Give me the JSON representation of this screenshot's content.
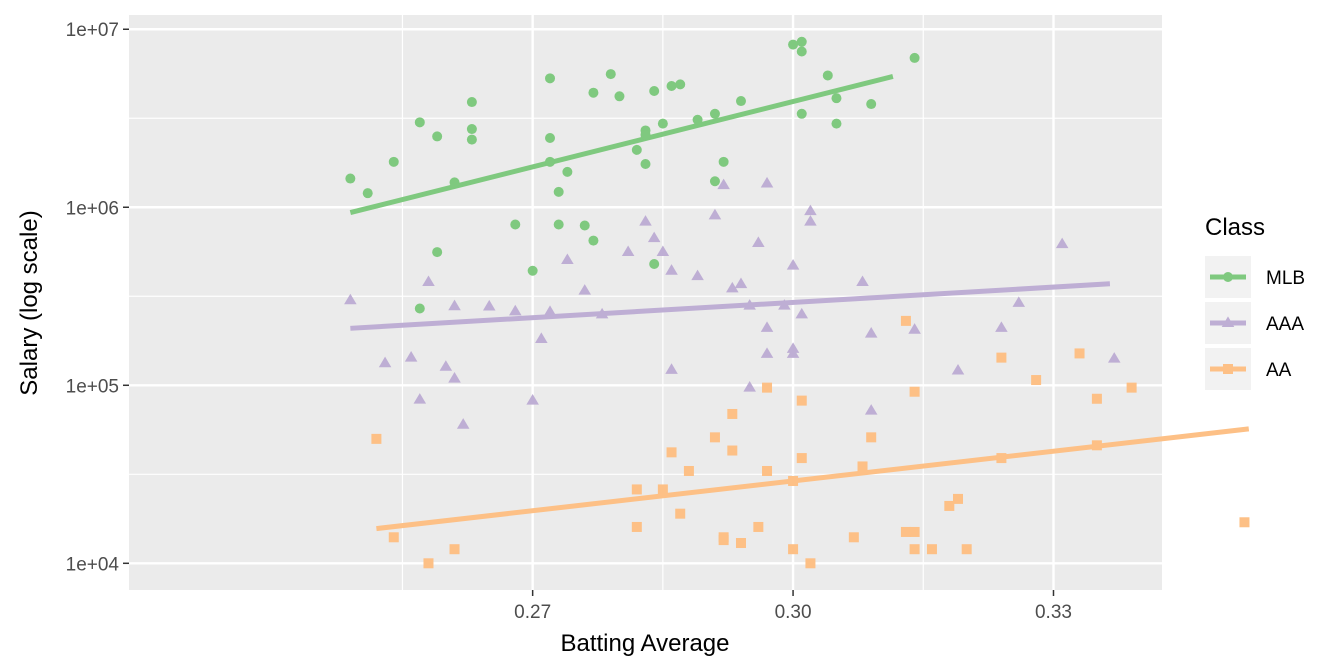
{
  "chart_data": {
    "type": "scatter",
    "title": "",
    "xlabel": "Batting Average",
    "ylabel": "Salary (log scale)",
    "xlim": [
      0.2235,
      0.3425
    ],
    "ylim_log10": [
      3.85,
      7.08
    ],
    "y_scale": "log10",
    "x_ticks": [
      0.27,
      0.3,
      0.33
    ],
    "x_tick_labels": [
      "0.27",
      "0.30",
      "0.33"
    ],
    "x_minor": [
      0.255,
      0.285,
      0.315,
      0.345
    ],
    "y_ticks_log10": [
      4,
      5,
      6,
      7
    ],
    "y_tick_labels": [
      "1e+04",
      "1e+05",
      "1e+06",
      "1e+07"
    ],
    "grid": true,
    "legend_title": "Class",
    "legend_position": "right",
    "series": [
      {
        "name": "MLB",
        "color": "#7fc97f",
        "shape": "circle",
        "fit": {
          "x": [
            0.249,
            0.3115
          ],
          "log10_y": [
            5.97,
            6.735
          ]
        },
        "points": [
          [
            0.249,
            1450000
          ],
          [
            0.251,
            1200000
          ],
          [
            0.254,
            1800000
          ],
          [
            0.257,
            3000000
          ],
          [
            0.259,
            2500000
          ],
          [
            0.257,
            270000
          ],
          [
            0.259,
            560000
          ],
          [
            0.261,
            1380000
          ],
          [
            0.263,
            3900000
          ],
          [
            0.263,
            2750000
          ],
          [
            0.263,
            2400000
          ],
          [
            0.268,
            800000
          ],
          [
            0.27,
            440000
          ],
          [
            0.272,
            5300000
          ],
          [
            0.272,
            2450000
          ],
          [
            0.272,
            1800000
          ],
          [
            0.273,
            1220000
          ],
          [
            0.273,
            800000
          ],
          [
            0.274,
            1580000
          ],
          [
            0.276,
            790000
          ],
          [
            0.277,
            650000
          ],
          [
            0.277,
            4400000
          ],
          [
            0.279,
            5600000
          ],
          [
            0.28,
            4200000
          ],
          [
            0.282,
            2100000
          ],
          [
            0.283,
            2700000
          ],
          [
            0.283,
            2550000
          ],
          [
            0.283,
            1750000
          ],
          [
            0.284,
            480000
          ],
          [
            0.284,
            4500000
          ],
          [
            0.285,
            2950000
          ],
          [
            0.286,
            4800000
          ],
          [
            0.287,
            4900000
          ],
          [
            0.289,
            3100000
          ],
          [
            0.291,
            3350000
          ],
          [
            0.291,
            1400000
          ],
          [
            0.292,
            1800000
          ],
          [
            0.294,
            3950000
          ],
          [
            0.3,
            8200000
          ],
          [
            0.301,
            8500000
          ],
          [
            0.301,
            7500000
          ],
          [
            0.301,
            3350000
          ],
          [
            0.304,
            5500000
          ],
          [
            0.305,
            4100000
          ],
          [
            0.305,
            2950000
          ],
          [
            0.309,
            3800000
          ],
          [
            0.314,
            6900000
          ]
        ]
      },
      {
        "name": "AAA",
        "color": "#beaed4",
        "shape": "triangle",
        "fit": {
          "x": [
            0.249,
            0.3365
          ],
          "log10_y": [
            5.32,
            5.57
          ]
        },
        "points": [
          [
            0.249,
            300000
          ],
          [
            0.253,
            133000
          ],
          [
            0.256,
            143000
          ],
          [
            0.257,
            83000
          ],
          [
            0.258,
            380000
          ],
          [
            0.26,
            127000
          ],
          [
            0.261,
            109000
          ],
          [
            0.261,
            278000
          ],
          [
            0.262,
            60000
          ],
          [
            0.265,
            277000
          ],
          [
            0.268,
            260000
          ],
          [
            0.27,
            82000
          ],
          [
            0.271,
            182000
          ],
          [
            0.272,
            258000
          ],
          [
            0.274,
            505000
          ],
          [
            0.276,
            340000
          ],
          [
            0.278,
            250000
          ],
          [
            0.281,
            560000
          ],
          [
            0.283,
            830000
          ],
          [
            0.284,
            670000
          ],
          [
            0.285,
            560000
          ],
          [
            0.286,
            122000
          ],
          [
            0.286,
            440000
          ],
          [
            0.289,
            410000
          ],
          [
            0.291,
            900000
          ],
          [
            0.292,
            1330000
          ],
          [
            0.293,
            350000
          ],
          [
            0.294,
            370000
          ],
          [
            0.295,
            97000
          ],
          [
            0.295,
            280000
          ],
          [
            0.296,
            630000
          ],
          [
            0.297,
            150000
          ],
          [
            0.297,
            210000
          ],
          [
            0.297,
            1360000
          ],
          [
            0.299,
            280000
          ],
          [
            0.3,
            160000
          ],
          [
            0.3,
            150000
          ],
          [
            0.3,
            470000
          ],
          [
            0.301,
            250000
          ],
          [
            0.302,
            950000
          ],
          [
            0.302,
            830000
          ],
          [
            0.308,
            380000
          ],
          [
            0.309,
            195000
          ],
          [
            0.309,
            72000
          ],
          [
            0.314,
            205000
          ],
          [
            0.319,
            121000
          ],
          [
            0.324,
            210000
          ],
          [
            0.326,
            290000
          ],
          [
            0.331,
            620000
          ],
          [
            0.337,
            141000
          ]
        ]
      },
      {
        "name": "AA",
        "color": "#fdc086",
        "shape": "square",
        "fit": {
          "x": [
            0.252,
            0.3525
          ],
          "log10_y": [
            4.195,
            4.755
          ]
        },
        "points": [
          [
            0.252,
            50000
          ],
          [
            0.254,
            14000
          ],
          [
            0.258,
            10000
          ],
          [
            0.261,
            12000
          ],
          [
            0.282,
            16000
          ],
          [
            0.282,
            26000
          ],
          [
            0.285,
            26000
          ],
          [
            0.286,
            42000
          ],
          [
            0.287,
            19000
          ],
          [
            0.288,
            33000
          ],
          [
            0.291,
            51000
          ],
          [
            0.292,
            14000
          ],
          [
            0.292,
            13500
          ],
          [
            0.293,
            43000
          ],
          [
            0.293,
            69000
          ],
          [
            0.294,
            13000
          ],
          [
            0.296,
            16000
          ],
          [
            0.297,
            97000
          ],
          [
            0.297,
            33000
          ],
          [
            0.3,
            12000
          ],
          [
            0.3,
            29000
          ],
          [
            0.301,
            39000
          ],
          [
            0.301,
            82000
          ],
          [
            0.302,
            10000
          ],
          [
            0.307,
            14000
          ],
          [
            0.308,
            35000
          ],
          [
            0.309,
            51000
          ],
          [
            0.313,
            230000
          ],
          [
            0.313,
            15000
          ],
          [
            0.314,
            15000
          ],
          [
            0.314,
            12000
          ],
          [
            0.314,
            92000
          ],
          [
            0.316,
            12000
          ],
          [
            0.318,
            21000
          ],
          [
            0.319,
            23000
          ],
          [
            0.32,
            12000
          ],
          [
            0.324,
            39000
          ],
          [
            0.324,
            143000
          ],
          [
            0.328,
            107000
          ],
          [
            0.333,
            151000
          ],
          [
            0.335,
            46000
          ],
          [
            0.335,
            84000
          ],
          [
            0.339,
            97000
          ],
          [
            0.352,
            17000
          ]
        ]
      }
    ]
  }
}
